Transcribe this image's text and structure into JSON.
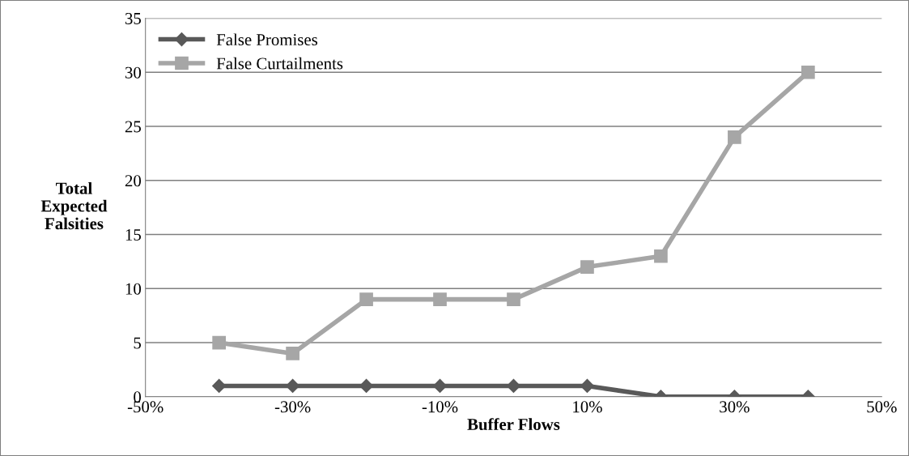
{
  "chart_data": {
    "type": "line",
    "xlabel": "Buffer Flows",
    "ylabel": "Total\nExpected\nFalsities",
    "x": [
      -40,
      -30,
      -20,
      -10,
      0,
      10,
      20,
      30,
      40
    ],
    "series": [
      {
        "name": "False Promises",
        "color": "#595959",
        "marker": "diamond",
        "values": [
          1,
          1,
          1,
          1,
          1,
          1,
          0,
          0,
          0
        ]
      },
      {
        "name": "False Curtailments",
        "color": "#a6a6a6",
        "marker": "square",
        "values": [
          5,
          4,
          9,
          9,
          9,
          12,
          13,
          24,
          30
        ]
      }
    ],
    "xlim": [
      -50,
      50
    ],
    "xticks": [
      {
        "value": -50,
        "label": "-50%"
      },
      {
        "value": -30,
        "label": "-30%"
      },
      {
        "value": -10,
        "label": "-10%"
      },
      {
        "value": 10,
        "label": "10%"
      },
      {
        "value": 30,
        "label": "30%"
      },
      {
        "value": 50,
        "label": "50%"
      }
    ],
    "ylim": [
      0,
      35
    ],
    "yticks": [
      0,
      5,
      10,
      15,
      20,
      25,
      30,
      35
    ],
    "grid": "y",
    "legend": "top left",
    "line_style": "solid"
  }
}
